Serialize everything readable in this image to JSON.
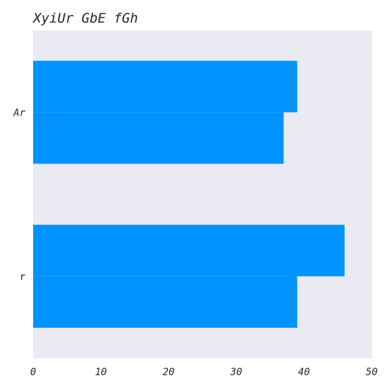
{
  "chart_data": {
    "type": "bar",
    "orientation": "horizontal",
    "title": "XyiUr GbE  fGh",
    "xlabel": "",
    "ylabel": "",
    "categories": [
      "Ar",
      "r"
    ],
    "series": [
      {
        "values": [
          39,
          46
        ]
      },
      {
        "values": [
          37,
          39
        ]
      }
    ],
    "xlim": [
      0,
      50
    ],
    "xticks": [
      "0",
      "10",
      "20",
      "30",
      "40",
      "50"
    ],
    "grid": false,
    "legend": "none",
    "colors": {
      "bar": "#0092ff",
      "plot_background": "#e9eaf2"
    }
  }
}
